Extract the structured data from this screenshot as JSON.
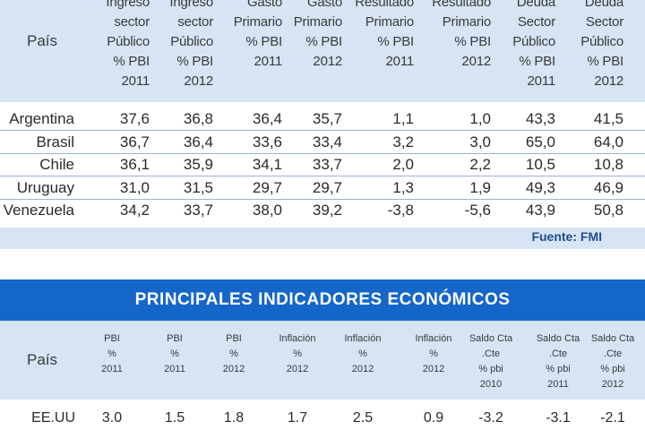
{
  "table1": {
    "headers": [
      {
        "lines": [
          "Ingreso",
          "sector",
          "Público",
          "% PBI",
          "2011"
        ]
      },
      {
        "lines": [
          "Ingreso",
          "sector",
          "Público",
          "% PBI",
          "2012"
        ]
      },
      {
        "lines": [
          "Gasto",
          "Primario",
          "% PBI",
          "2011"
        ]
      },
      {
        "lines": [
          "Gasto",
          "Primario",
          "% PBI",
          "2012"
        ]
      },
      {
        "lines": [
          "Resultado",
          "Primario",
          "% PBI",
          "2011"
        ]
      },
      {
        "lines": [
          "Resultado",
          "Primario",
          "% PBI",
          "2012"
        ]
      },
      {
        "lines": [
          "Deuda",
          "Sector",
          "Público",
          "% PBI",
          "2011"
        ]
      },
      {
        "lines": [
          "Deuda",
          "Sector",
          "Público",
          "% PBI",
          "2012"
        ]
      }
    ],
    "pais_label": "País",
    "rows": [
      {
        "country": "Argentina",
        "values": [
          "37,6",
          "36,8",
          "36,4",
          "35,7",
          "1,1",
          "1,0",
          "43,3",
          "41,5"
        ]
      },
      {
        "country": "Brasil",
        "values": [
          "36,7",
          "36,4",
          "33,6",
          "33,4",
          "3,2",
          "3,0",
          "65,0",
          "64,0"
        ]
      },
      {
        "country": "Chile",
        "values": [
          "36,1",
          "35,9",
          "34,1",
          "33,7",
          "2,0",
          "2,2",
          "10,5",
          "10,8"
        ]
      },
      {
        "country": "Uruguay",
        "values": [
          "31,0",
          "31,5",
          "29,7",
          "29,7",
          "1,3",
          "1,9",
          "49,3",
          "46,9"
        ]
      },
      {
        "country": "Venezuela",
        "values": [
          "34,2",
          "33,7",
          "38,0",
          "39,2",
          "-3,8",
          "-5,6",
          "43,9",
          "50,8"
        ]
      }
    ],
    "source": "Fuente: FMI"
  },
  "table2": {
    "title": "PRINCIPALES INDICADORES ECONÓMICOS",
    "pais_label": "País",
    "headers": [
      {
        "lines": [
          "PBI",
          "%",
          "2011"
        ]
      },
      {
        "lines": [
          "PBI",
          "%",
          "2011"
        ]
      },
      {
        "lines": [
          "PBI",
          "%",
          "2012"
        ]
      },
      {
        "lines": [
          "Inflación",
          "%",
          "2012"
        ]
      },
      {
        "lines": [
          "Inflación",
          "%",
          "2012"
        ]
      },
      {
        "lines": [
          "Inflación",
          "%",
          "2012"
        ]
      },
      {
        "lines": [
          "Saldo Cta",
          ".Cte",
          "% pbi",
          "2010"
        ]
      },
      {
        "lines": [
          "Saldo Cta",
          ".Cte",
          "% pbi",
          "2011"
        ]
      },
      {
        "lines": [
          "Saldo Cta",
          ".Cte",
          "% pbi",
          "2012"
        ]
      }
    ],
    "rows": [
      {
        "country": "EE.UU",
        "values": [
          "3.0",
          "1.5",
          "1.8",
          "1.7",
          "2.5",
          "0.9",
          "-3.2",
          "-3.1",
          "-2.1"
        ]
      }
    ]
  },
  "colors": {
    "header_bg": "#d6e4f3",
    "title_bg": "#1566c9",
    "source_text": "#1f4e8c",
    "row_rule": "#9ab4d4"
  }
}
